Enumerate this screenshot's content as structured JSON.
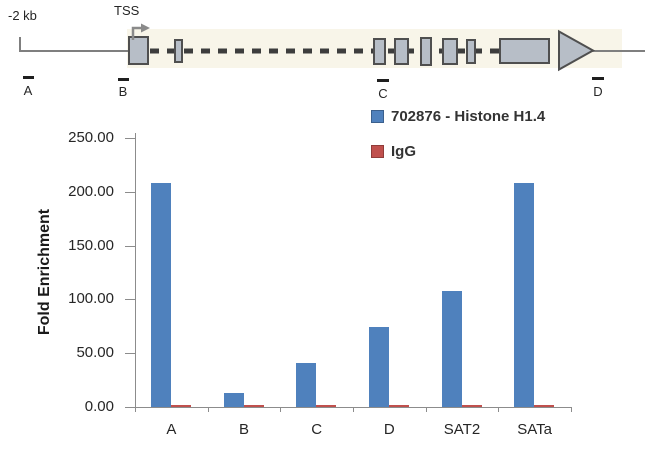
{
  "diagram": {
    "scale_label": "-2 kb",
    "tss_label": "TSS",
    "markers": [
      "A",
      "B",
      "C",
      "D"
    ],
    "colors": {
      "exon_fill": "#b7bec7",
      "exon_border": "#4f4f4f",
      "line": "#7f7f7f",
      "dash": "#3d3d3d",
      "band": "#f8f5e9",
      "marker": "#1f1f1f"
    }
  },
  "chart_data": {
    "type": "bar",
    "title": "",
    "xlabel": "",
    "ylabel": "Fold Enrichment",
    "categories": [
      "A",
      "B",
      "C",
      "D",
      "SAT2",
      "SATa"
    ],
    "series": [
      {
        "name": "702876 - Histone H1.4",
        "color": "#4F81BD",
        "values": [
          208,
          13,
          41,
          74,
          108,
          208
        ]
      },
      {
        "name": "IgG",
        "color": "#C0504D",
        "values": [
          1.5,
          1.5,
          1.5,
          1.5,
          1.5,
          1.5
        ]
      }
    ],
    "ylim": [
      0,
      250
    ],
    "ytick_labels": [
      "0.00",
      "50.00",
      "100.00",
      "150.00",
      "200.00",
      "250.00"
    ],
    "grid": false,
    "legend_position": "top-right"
  }
}
